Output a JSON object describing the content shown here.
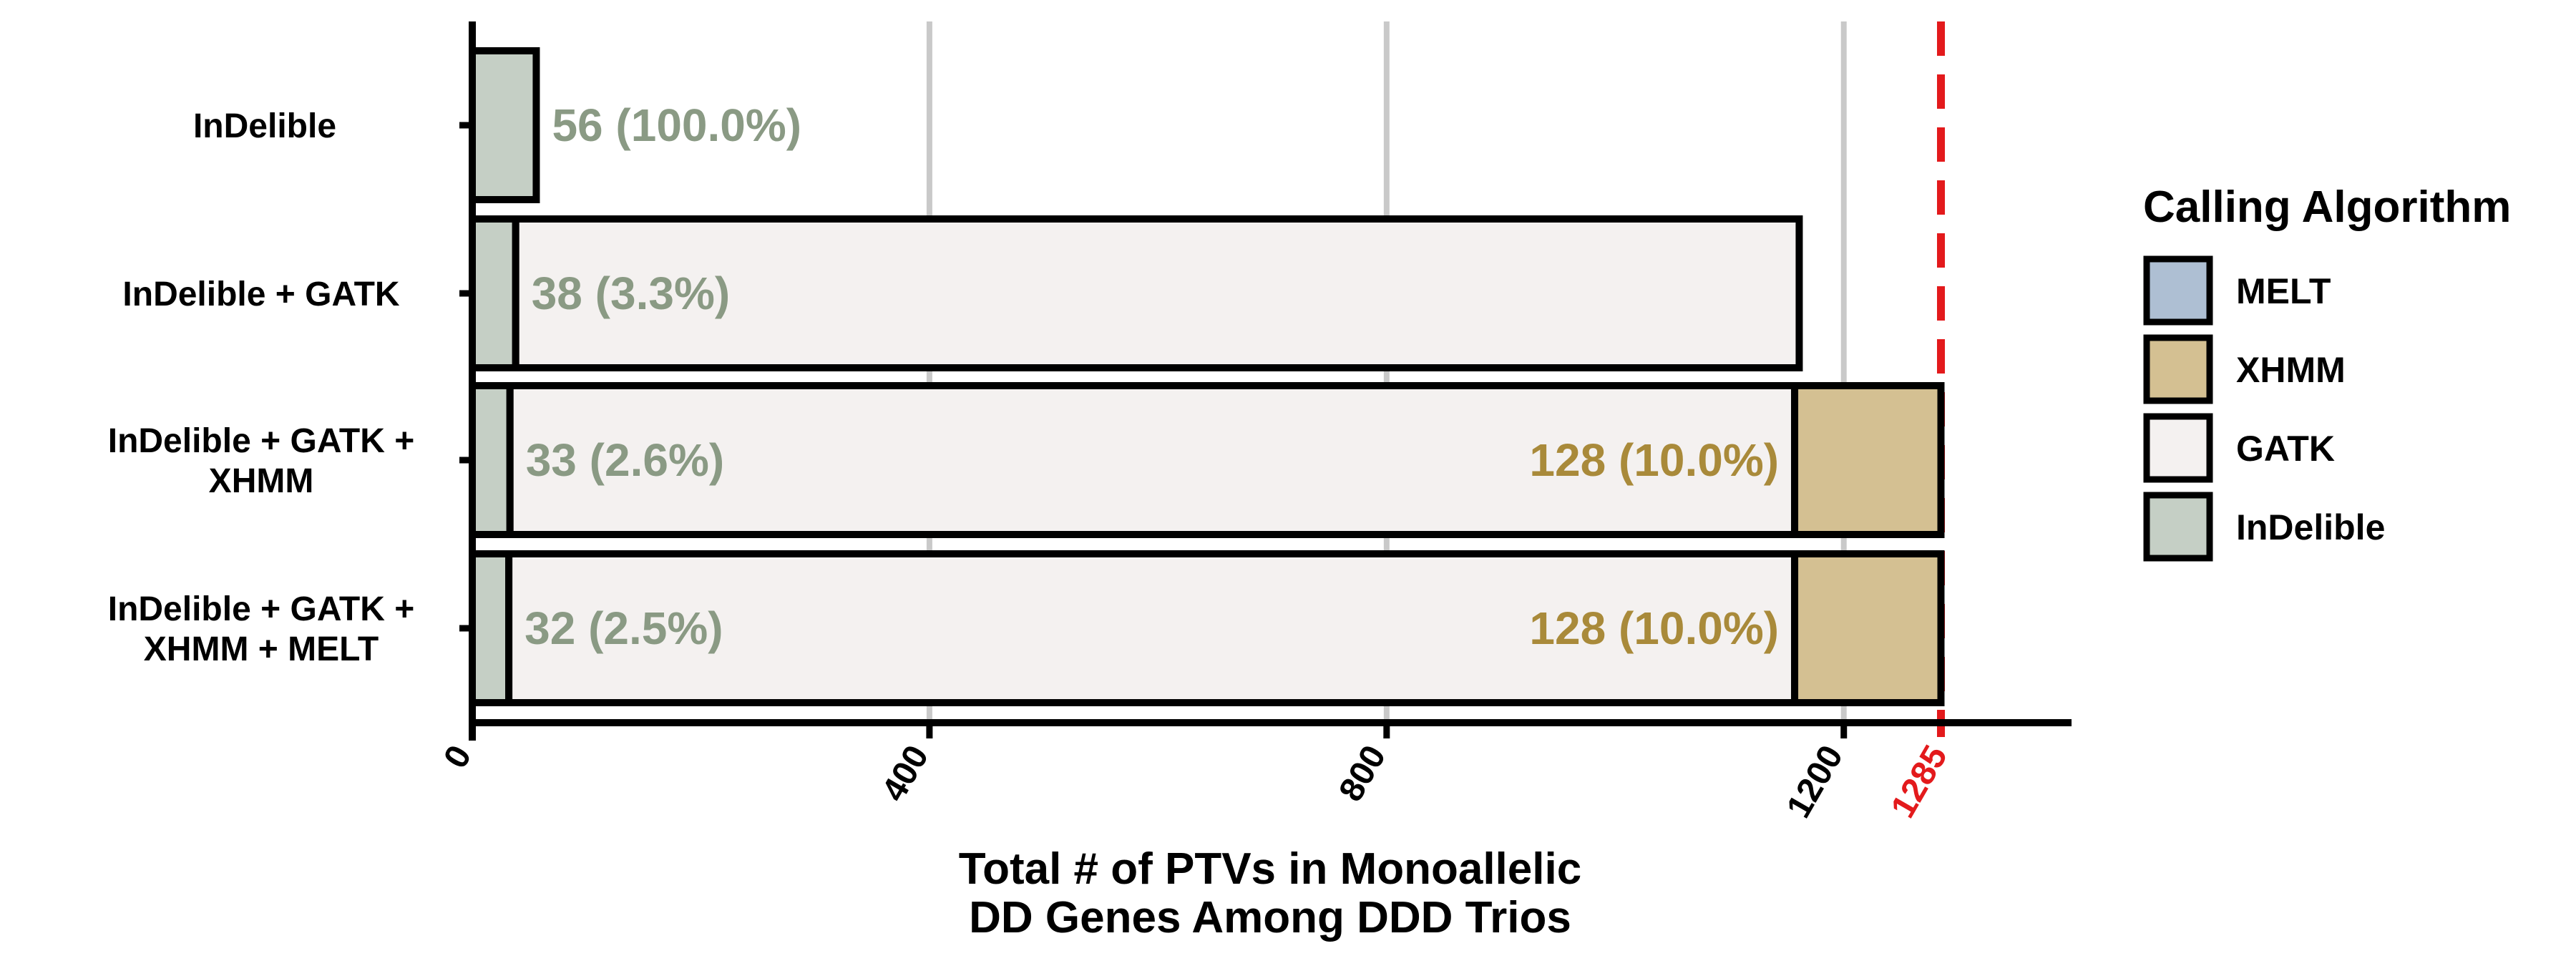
{
  "chart_data": {
    "type": "bar",
    "orientation": "horizontal",
    "stacked": true,
    "xlabel_lines": [
      "Total # of PTVs in Monoallelic",
      "DD Genes Among DDD Trios"
    ],
    "ylabel": "",
    "xlim": [
      0,
      1285
    ],
    "xticks": [
      0,
      400,
      800,
      1200
    ],
    "grid": "vertical",
    "categories": [
      [
        "InDelible"
      ],
      [
        "InDelible + GATK"
      ],
      [
        "InDelible + GATK +",
        "XHMM"
      ],
      [
        "InDelible + GATK +",
        "XHMM + MELT"
      ]
    ],
    "series": [
      {
        "name": "InDelible",
        "color": "#c5cfc5",
        "values": [
          56,
          38,
          33,
          32
        ],
        "labels": [
          "56 (100.0%)",
          "38 (3.3%)",
          "33 (2.6%)",
          "32 (2.5%)"
        ],
        "label_color": "#8a9a84"
      },
      {
        "name": "GATK",
        "color": "#f4f1f0",
        "values": [
          0,
          1123,
          1124,
          1125
        ],
        "labels": [
          "",
          "",
          "",
          ""
        ],
        "label_color": "#000000"
      },
      {
        "name": "XHMM",
        "color": "#d4c092",
        "values": [
          0,
          0,
          128,
          128
        ],
        "labels": [
          "",
          "",
          "128 (10.0%)",
          "128 (10.0%)"
        ],
        "label_color": "#a98a3a"
      },
      {
        "name": "MELT",
        "color": "#aebfd3",
        "values": [
          0,
          0,
          0,
          0
        ],
        "labels": [
          "",
          "",
          "",
          ""
        ],
        "label_color": "#000000"
      }
    ],
    "reference_line": {
      "value": 1285,
      "label": "1285",
      "color": "#e31a1c",
      "style": "dashed"
    },
    "legend": {
      "title": "Calling Algorithm",
      "placement": "right",
      "entries": [
        {
          "name": "MELT",
          "color": "#aebfd3"
        },
        {
          "name": "XHMM",
          "color": "#d4c092"
        },
        {
          "name": "GATK",
          "color": "#f4f1f0"
        },
        {
          "name": "InDelible",
          "color": "#c5cfc5"
        }
      ]
    }
  }
}
